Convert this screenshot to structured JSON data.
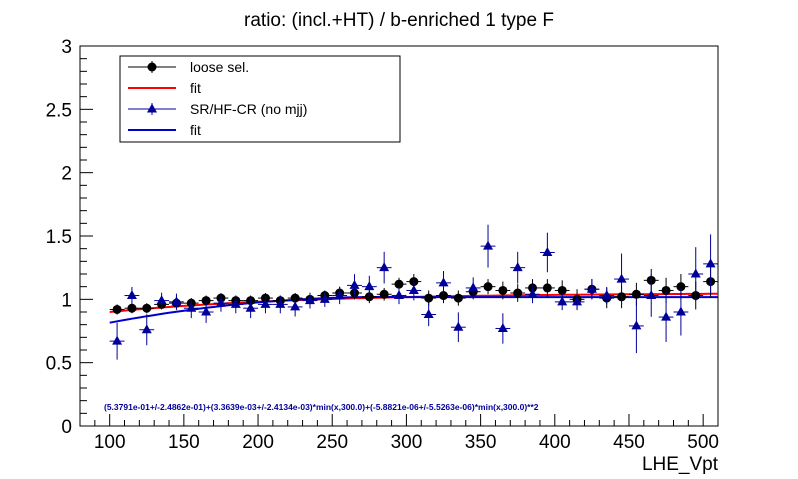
{
  "chart_data": {
    "type": "scatter",
    "title": "ratio: (incl.+HT) / b-enriched 1 type F",
    "xlabel": "LHE_Vpt",
    "ylabel": "",
    "xlim": [
      80,
      510
    ],
    "ylim": [
      0,
      3
    ],
    "x_ticks": [
      100,
      150,
      200,
      250,
      300,
      350,
      400,
      450,
      500
    ],
    "x_tick_labels": [
      "100",
      "150",
      "200",
      "250",
      "300",
      "350",
      "400",
      "450",
      "500"
    ],
    "y_ticks": [
      0,
      0.5,
      1,
      1.5,
      2,
      2.5,
      3
    ],
    "y_tick_labels": [
      "0",
      "0.5",
      "1",
      "1.5",
      "2",
      "2.5",
      "3"
    ],
    "grid": false,
    "legend_position": "top-left",
    "legend": [
      {
        "label": "loose sel.",
        "kind": "marker-circle",
        "color": "#000000"
      },
      {
        "label": "fit",
        "kind": "line",
        "color": "#ff0000"
      },
      {
        "label": "SR/HF-CR (no mjj)",
        "kind": "marker-triangle",
        "color": "#000099"
      },
      {
        "label": "fit",
        "kind": "line",
        "color": "#0000cc"
      }
    ],
    "annotation": "(5.3791e-01+/-2.4862e-01)+(3.3639e-03+/-2.4134e-03)*min(x,300.0)+(-5.8821e-06+/-5.5263e-06)*min(x,300.0)**2",
    "series": [
      {
        "name": "loose sel.",
        "marker": "circle",
        "color": "#000000",
        "x": [
          105,
          115,
          125,
          135,
          145,
          155,
          165,
          175,
          185,
          195,
          205,
          215,
          225,
          235,
          245,
          255,
          265,
          275,
          285,
          295,
          305,
          315,
          325,
          335,
          345,
          355,
          365,
          375,
          385,
          395,
          405,
          415,
          425,
          435,
          445,
          455,
          465,
          475,
          485,
          495,
          505
        ],
        "y": [
          0.92,
          0.93,
          0.93,
          0.96,
          0.97,
          0.97,
          0.99,
          1.01,
          0.99,
          0.99,
          1.01,
          0.99,
          1.01,
          1.0,
          1.03,
          1.05,
          1.05,
          1.02,
          1.04,
          1.12,
          1.14,
          1.01,
          1.03,
          1.01,
          1.06,
          1.1,
          1.07,
          1.05,
          1.09,
          1.09,
          1.07,
          1.0,
          1.08,
          1.01,
          1.02,
          1.04,
          1.15,
          1.07,
          1.1,
          1.03,
          1.14
        ],
        "yerr": [
          0.04,
          0.04,
          0.04,
          0.04,
          0.04,
          0.04,
          0.04,
          0.04,
          0.04,
          0.04,
          0.04,
          0.04,
          0.04,
          0.04,
          0.04,
          0.05,
          0.05,
          0.05,
          0.05,
          0.05,
          0.06,
          0.06,
          0.06,
          0.06,
          0.06,
          0.06,
          0.07,
          0.07,
          0.07,
          0.07,
          0.08,
          0.08,
          0.08,
          0.08,
          0.09,
          0.09,
          0.09,
          0.1,
          0.1,
          0.11,
          0.12
        ]
      },
      {
        "name": "SR/HF-CR (no mjj)",
        "marker": "triangle",
        "color": "#000099",
        "x": [
          105,
          115,
          125,
          135,
          145,
          155,
          165,
          175,
          185,
          195,
          205,
          215,
          225,
          235,
          245,
          255,
          265,
          275,
          285,
          295,
          305,
          315,
          325,
          335,
          345,
          355,
          365,
          375,
          385,
          395,
          405,
          415,
          425,
          435,
          445,
          455,
          465,
          475,
          485,
          495,
          505
        ],
        "y": [
          0.67,
          1.03,
          0.76,
          0.99,
          0.98,
          0.93,
          0.9,
          0.97,
          0.96,
          0.93,
          0.96,
          0.96,
          0.94,
          0.99,
          1.0,
          1.03,
          1.11,
          1.1,
          1.25,
          1.03,
          1.07,
          0.88,
          1.13,
          0.78,
          1.09,
          1.42,
          0.77,
          1.25,
          1.04,
          1.37,
          0.98,
          0.98,
          1.08,
          1.03,
          1.16,
          0.79,
          1.03,
          0.86,
          0.9,
          1.2,
          1.28
        ]
      }
    ]
  }
}
